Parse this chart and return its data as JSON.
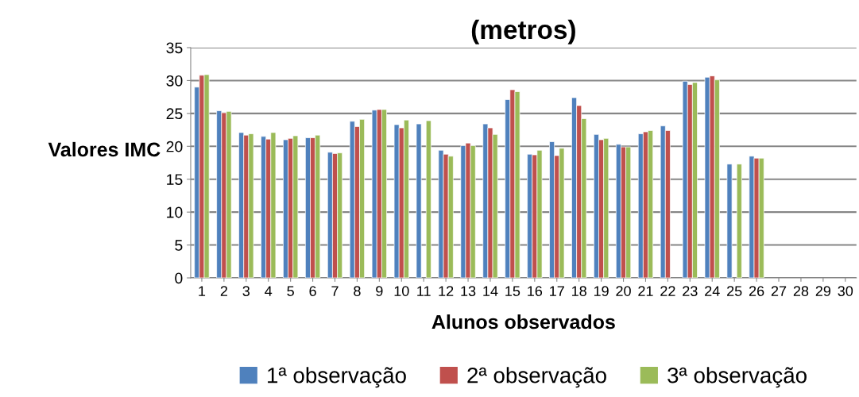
{
  "chart_data": {
    "type": "bar",
    "title": "(metros)",
    "xlabel": "Alunos observados",
    "ylabel": "Valores IMC",
    "categories": [
      "1",
      "2",
      "3",
      "4",
      "5",
      "6",
      "7",
      "8",
      "9",
      "10",
      "11",
      "12",
      "13",
      "14",
      "15",
      "16",
      "17",
      "18",
      "19",
      "20",
      "21",
      "22",
      "23",
      "24",
      "25",
      "26",
      "27",
      "28",
      "29",
      "30"
    ],
    "series": [
      {
        "name": "1ª observação",
        "color": "#4f81bd",
        "values": [
          29.0,
          25.4,
          22.1,
          21.5,
          21.0,
          21.3,
          19.1,
          23.8,
          25.5,
          23.3,
          23.4,
          19.4,
          20.1,
          23.4,
          27.1,
          18.8,
          20.7,
          27.4,
          21.8,
          20.3,
          21.9,
          23.1,
          29.9,
          30.5,
          17.3,
          18.5,
          null,
          null,
          null,
          null
        ]
      },
      {
        "name": "2ª observação",
        "color": "#c0504d",
        "values": [
          30.8,
          25.1,
          21.7,
          21.1,
          21.2,
          21.3,
          18.9,
          23.0,
          25.6,
          22.8,
          null,
          18.8,
          20.5,
          22.8,
          28.6,
          18.7,
          18.6,
          26.2,
          21.0,
          19.9,
          22.2,
          22.4,
          29.4,
          30.7,
          null,
          18.2,
          null,
          null,
          null,
          null
        ]
      },
      {
        "name": "3ª observação",
        "color": "#9bbb59",
        "values": [
          30.9,
          25.3,
          21.9,
          22.1,
          21.6,
          21.7,
          19.0,
          24.1,
          25.6,
          24.0,
          23.9,
          18.5,
          20.1,
          21.8,
          28.3,
          19.4,
          19.7,
          24.2,
          21.2,
          19.9,
          22.4,
          null,
          29.7,
          30.1,
          17.3,
          18.2,
          null,
          null,
          null,
          null
        ]
      }
    ],
    "ylim": [
      0,
      35
    ],
    "yticks": [
      0,
      5,
      10,
      15,
      20,
      25,
      30,
      35
    ],
    "grid": "y",
    "legend": "bottom"
  }
}
